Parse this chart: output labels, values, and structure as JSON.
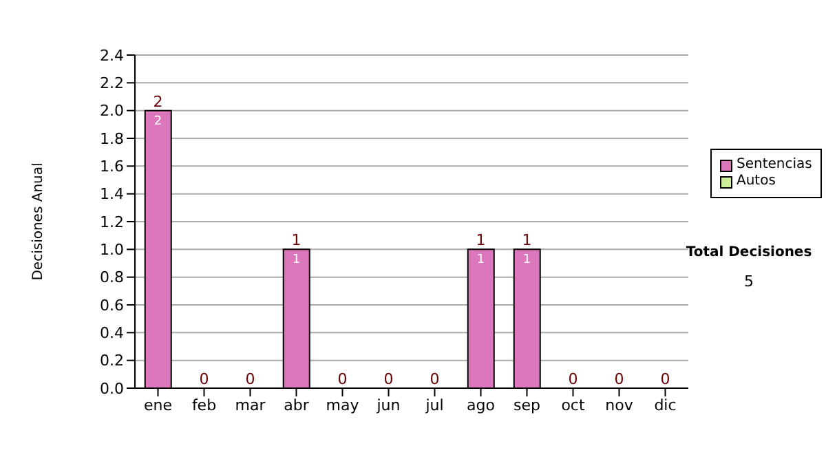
{
  "chart_data": {
    "type": "bar",
    "ylabel": "Decisiones Anual",
    "categories": [
      "ene",
      "feb",
      "mar",
      "abr",
      "may",
      "jun",
      "jul",
      "ago",
      "sep",
      "oct",
      "nov",
      "dic"
    ],
    "stacked": true,
    "series": [
      {
        "name": "Sentencias",
        "color": "#dd77bb",
        "values": [
          2,
          0,
          0,
          1,
          0,
          0,
          0,
          1,
          1,
          0,
          0,
          0
        ],
        "value_labels": [
          "2",
          null,
          null,
          "1",
          null,
          null,
          null,
          "1",
          "1",
          null,
          null,
          null
        ]
      },
      {
        "name": "Autos",
        "color": "#ccee99",
        "values": [
          0,
          0,
          0,
          0,
          0,
          0,
          0,
          0,
          0,
          0,
          0,
          0
        ]
      }
    ],
    "totals": [
      "2",
      "0",
      "0",
      "1",
      "0",
      "0",
      "0",
      "1",
      "1",
      "0",
      "0",
      "0"
    ],
    "ylim": [
      0,
      2.4
    ],
    "yticks": [
      {
        "value": 0,
        "label": "0.0"
      },
      {
        "value": 0.2,
        "label": "0.2"
      },
      {
        "value": 0.4,
        "label": "0.4"
      },
      {
        "value": 0.6,
        "label": "0.6"
      },
      {
        "value": 0.8,
        "label": "0.8"
      },
      {
        "value": 1,
        "label": "1.0"
      },
      {
        "value": 1.2,
        "label": "1.2"
      },
      {
        "value": 1.4,
        "label": "1.4"
      },
      {
        "value": 1.6,
        "label": "1.6"
      },
      {
        "value": 1.8,
        "label": "1.8"
      },
      {
        "value": 2,
        "label": "2.0"
      },
      {
        "value": 2.2,
        "label": "2.2"
      },
      {
        "value": 2.4,
        "label": "2.4"
      }
    ],
    "grid": "y",
    "legend": "right",
    "annotations": [
      "Total Decisiones",
      "5"
    ]
  }
}
